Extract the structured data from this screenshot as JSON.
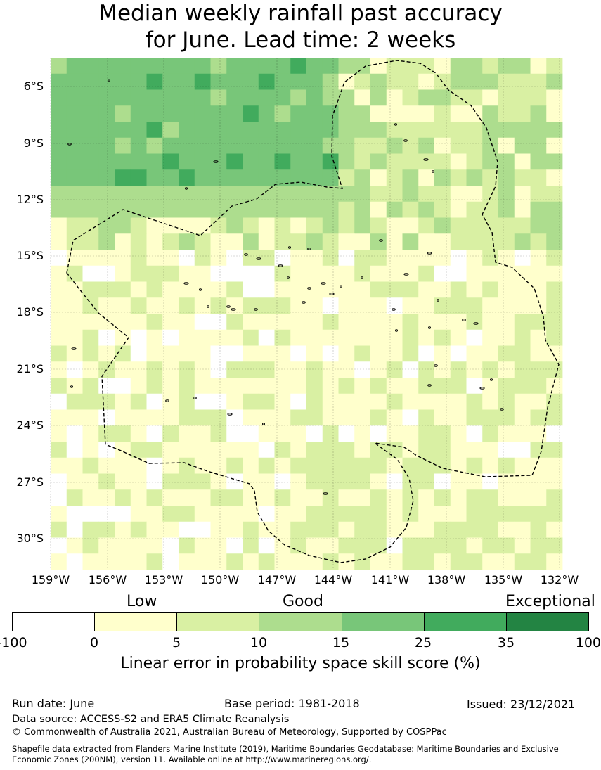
{
  "title": {
    "line1": "Median weekly rainfall past accuracy",
    "line2": "for June. Lead time: 2 weeks"
  },
  "map": {
    "lat_labels": [
      "6°S",
      "9°S",
      "12°S",
      "15°S",
      "18°S",
      "21°S",
      "24°S",
      "27°S",
      "30°S"
    ],
    "lon_labels": [
      "159°W",
      "156°W",
      "153°W",
      "150°W",
      "147°W",
      "144°W",
      "141°W",
      "138°W",
      "135°W",
      "132°W"
    ],
    "overlay": "dashed maritime boundary (EEZ) outline",
    "category_colors": {
      "below_0": "#ffffff",
      "0_5": "#ffffcc",
      "5_10": "#d9f0a3",
      "10_15": "#addd8e",
      "15_25": "#78c679",
      "25_35": "#41ab5d",
      "35_100": "#238443"
    }
  },
  "legend": {
    "categories": [
      "Low",
      "Good",
      "Exceptional"
    ],
    "ticks": [
      "-100",
      "0",
      "5",
      "10",
      "15",
      "25",
      "35",
      "100"
    ],
    "colors": [
      "#ffffff",
      "#ffffcc",
      "#d9f0a3",
      "#addd8e",
      "#78c679",
      "#41ab5d",
      "#238443"
    ],
    "title": "Linear error in probability space skill score (%)"
  },
  "meta": {
    "run_date": "Run date: June",
    "base_period": "Base period: 1981-2018",
    "issued": "Issued: 23/12/2021",
    "data_source": "Data source: ACCESS-S2 and ERA5 Climate Reanalysis",
    "copyright": "© Commonwealth of Australia 2021, Australian Bureau of Meteorology, Supported by COSPPac",
    "shapefile": "Shapefile data extracted from Flanders Marine Institute (2019), Maritime Boundaries Geodatabase: Maritime Boundaries and Exclusive Economic Zones (200NM), version 11. Available online at http://www.marineregions.org/."
  }
}
